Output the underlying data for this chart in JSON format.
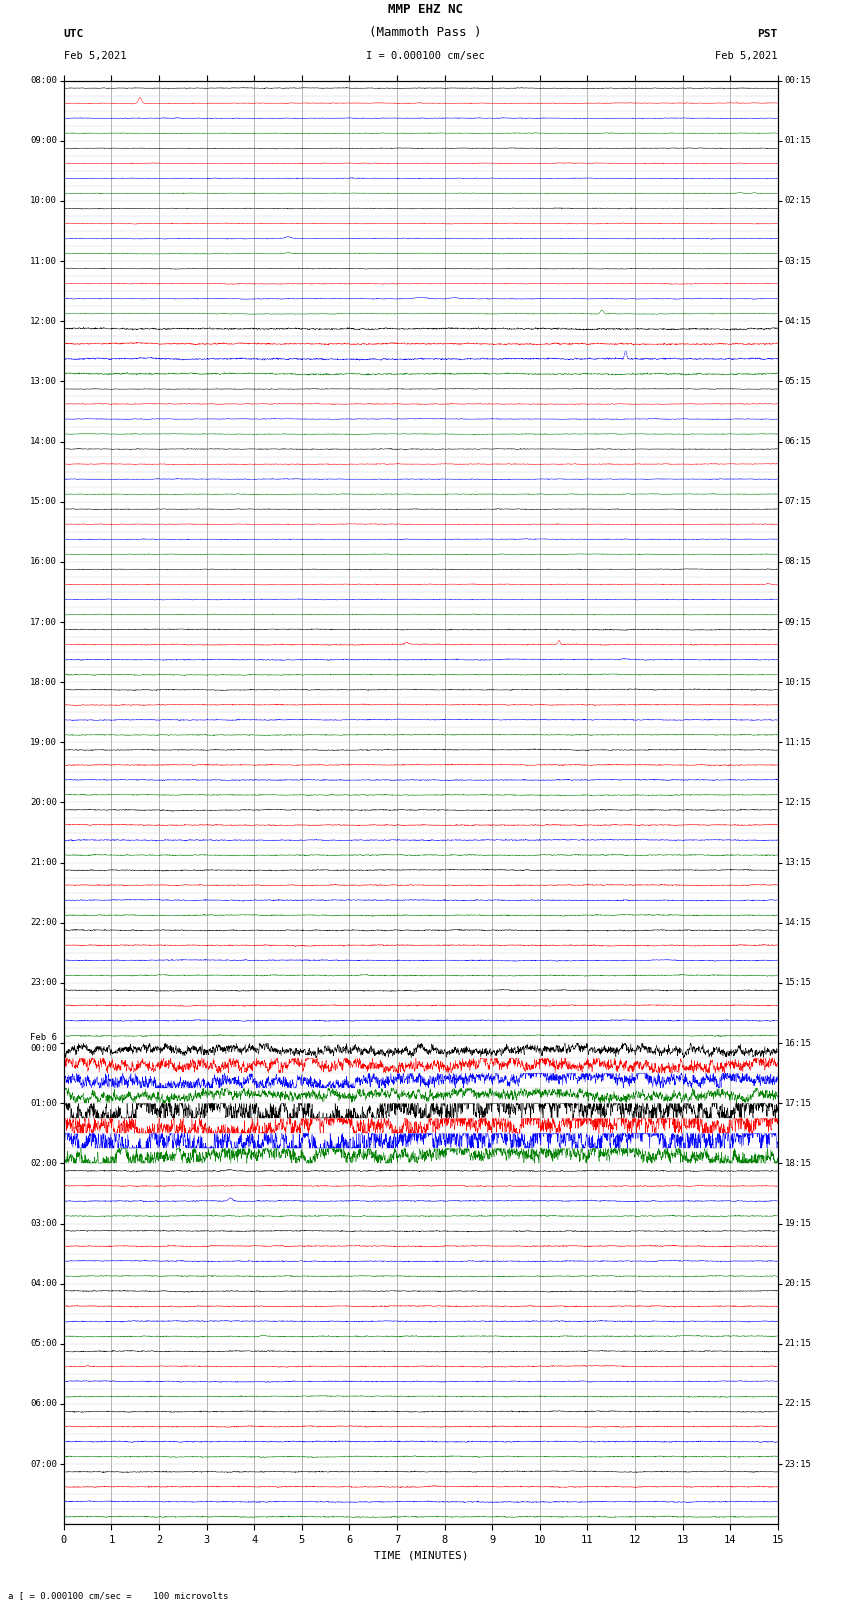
{
  "title_line1": "MMP EHZ NC",
  "title_line2": "(Mammoth Pass )",
  "scale_label": "I = 0.000100 cm/sec",
  "left_label_line1": "UTC",
  "left_label_line2": "Feb 5,2021",
  "right_label_line1": "PST",
  "right_label_line2": "Feb 5,2021",
  "bottom_label": "a [ = 0.000100 cm/sec =    100 microvolts",
  "xlabel": "TIME (MINUTES)",
  "utc_labels": [
    "08:00",
    "09:00",
    "10:00",
    "11:00",
    "12:00",
    "13:00",
    "14:00",
    "15:00",
    "16:00",
    "17:00",
    "18:00",
    "19:00",
    "20:00",
    "21:00",
    "22:00",
    "23:00",
    "Feb 6\n00:00",
    "01:00",
    "02:00",
    "03:00",
    "04:00",
    "05:00",
    "06:00",
    "07:00"
  ],
  "pst_labels": [
    "00:15",
    "01:15",
    "02:15",
    "03:15",
    "04:15",
    "05:15",
    "06:15",
    "07:15",
    "08:15",
    "09:15",
    "10:15",
    "11:15",
    "12:15",
    "13:15",
    "14:15",
    "15:15",
    "16:15",
    "17:15",
    "18:15",
    "19:15",
    "20:15",
    "21:15",
    "22:15",
    "23:15"
  ],
  "n_rows": 96,
  "n_minutes": 15,
  "colors": [
    "black",
    "red",
    "blue",
    "green"
  ],
  "bg_color": "#ffffff",
  "fig_width": 8.5,
  "fig_height": 16.13,
  "dpi": 100,
  "samples_per_min": 200
}
